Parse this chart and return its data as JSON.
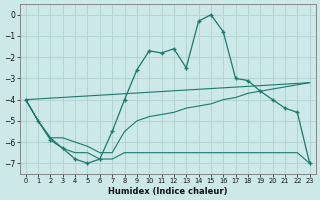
{
  "bg_color": "#cce8e8",
  "grid_color": "#b0d0d0",
  "line_color": "#1a7a6e",
  "xlabel": "Humidex (Indice chaleur)",
  "xlim": [
    -0.5,
    23.5
  ],
  "ylim": [
    -7.5,
    0.5
  ],
  "yticks": [
    0,
    -1,
    -2,
    -3,
    -4,
    -5,
    -6,
    -7
  ],
  "xticks": [
    0,
    1,
    2,
    3,
    4,
    5,
    6,
    7,
    8,
    9,
    10,
    11,
    12,
    13,
    14,
    15,
    16,
    17,
    18,
    19,
    20,
    21,
    22,
    23
  ],
  "line1_x": [
    0,
    1,
    2,
    3,
    4,
    5,
    6,
    7,
    8,
    9,
    10,
    11,
    12,
    13,
    14,
    15,
    16,
    17,
    18,
    19,
    20,
    21,
    22,
    23
  ],
  "line1_y": [
    -4.0,
    -5.0,
    -5.9,
    -6.3,
    -6.8,
    -7.0,
    -6.8,
    -5.5,
    -4.0,
    -2.6,
    -1.7,
    -1.8,
    -1.6,
    -2.5,
    -0.3,
    0.0,
    -0.8,
    -3.0,
    -3.1,
    -3.6,
    -4.0,
    -4.4,
    -4.6,
    -7.0
  ],
  "line2_x": [
    0,
    1,
    2,
    3,
    4,
    5,
    6,
    7,
    8,
    9,
    10,
    11,
    12,
    13,
    14,
    15,
    16,
    17,
    18,
    19,
    20,
    21,
    22,
    23
  ],
  "line2_y": [
    -4.0,
    -5.0,
    -5.8,
    -5.8,
    -6.0,
    -6.2,
    -6.5,
    -6.5,
    -5.5,
    -5.0,
    -4.8,
    -4.7,
    -4.6,
    -4.4,
    -4.3,
    -4.2,
    -4.0,
    -3.9,
    -3.7,
    -3.6,
    -3.5,
    -3.4,
    -3.3,
    -3.2
  ],
  "line3_x": [
    0,
    23
  ],
  "line3_y": [
    -4.0,
    -3.2
  ],
  "line4_x": [
    0,
    1,
    2,
    3,
    4,
    5,
    6,
    7,
    8,
    9,
    10,
    11,
    12,
    13,
    14,
    15,
    16,
    17,
    18,
    19,
    20,
    21,
    22,
    23
  ],
  "line4_y": [
    -4.0,
    -5.0,
    -5.8,
    -6.3,
    -6.5,
    -6.5,
    -6.8,
    -6.8,
    -6.5,
    -6.5,
    -6.5,
    -6.5,
    -6.5,
    -6.5,
    -6.5,
    -6.5,
    -6.5,
    -6.5,
    -6.5,
    -6.5,
    -6.5,
    -6.5,
    -6.5,
    -7.0
  ]
}
